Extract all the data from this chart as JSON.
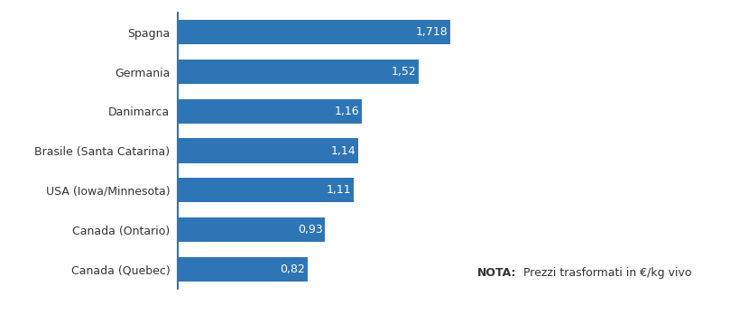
{
  "categories": [
    "Canada (Quebec)",
    "Canada (Ontario)",
    "USA (Iowa/Minnesota)",
    "Brasile (Santa Catarina)",
    "Danimarca",
    "Germania",
    "Spagna"
  ],
  "values": [
    0.82,
    0.93,
    1.11,
    1.14,
    1.16,
    1.52,
    1.718
  ],
  "labels": [
    "0,82",
    "0,93",
    "1,11",
    "1,14",
    "1,16",
    "1,52",
    "1,718"
  ],
  "bar_color": "#2E75B6",
  "background_color": "#ffffff",
  "text_color": "#333333",
  "label_color": "#ffffff",
  "nota_bold": "NOTA:",
  "nota_text": " Prezzi trasformati in €/kg vivo",
  "xlim": [
    0,
    1.82
  ],
  "bar_height": 0.62,
  "spine_color": "#2E75B6",
  "label_fontsize": 9.0,
  "tick_fontsize": 9.0,
  "nota_fontsize": 9.0
}
